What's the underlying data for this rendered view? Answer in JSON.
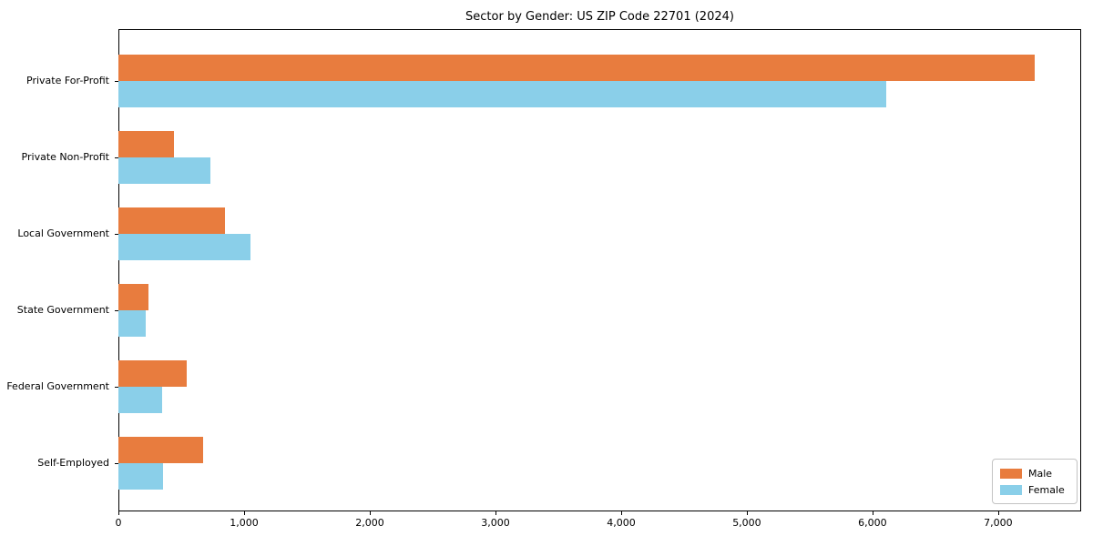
{
  "chart_data": {
    "type": "bar",
    "orientation": "horizontal",
    "title": "Sector by Gender: US ZIP Code 22701 (2024)",
    "categories": [
      "Private For-Profit",
      "Private Non-Profit",
      "Local Government",
      "State Government",
      "Federal Government",
      "Self-Employed"
    ],
    "series": [
      {
        "name": "Male",
        "color": "#e87c3e",
        "values": [
          7290,
          445,
          845,
          240,
          540,
          675
        ]
      },
      {
        "name": "Female",
        "color": "#8acfe9",
        "values": [
          6110,
          730,
          1050,
          220,
          345,
          355
        ]
      }
    ],
    "xlabel": "",
    "ylabel": "",
    "xlim": [
      0,
      7660
    ],
    "xticks": [
      0,
      1000,
      2000,
      3000,
      4000,
      5000,
      6000,
      7000
    ],
    "xtick_labels": [
      "0",
      "1,000",
      "2,000",
      "3,000",
      "4,000",
      "5,000",
      "6,000",
      "7,000"
    ],
    "grid": false,
    "legend_position": "lower right"
  }
}
